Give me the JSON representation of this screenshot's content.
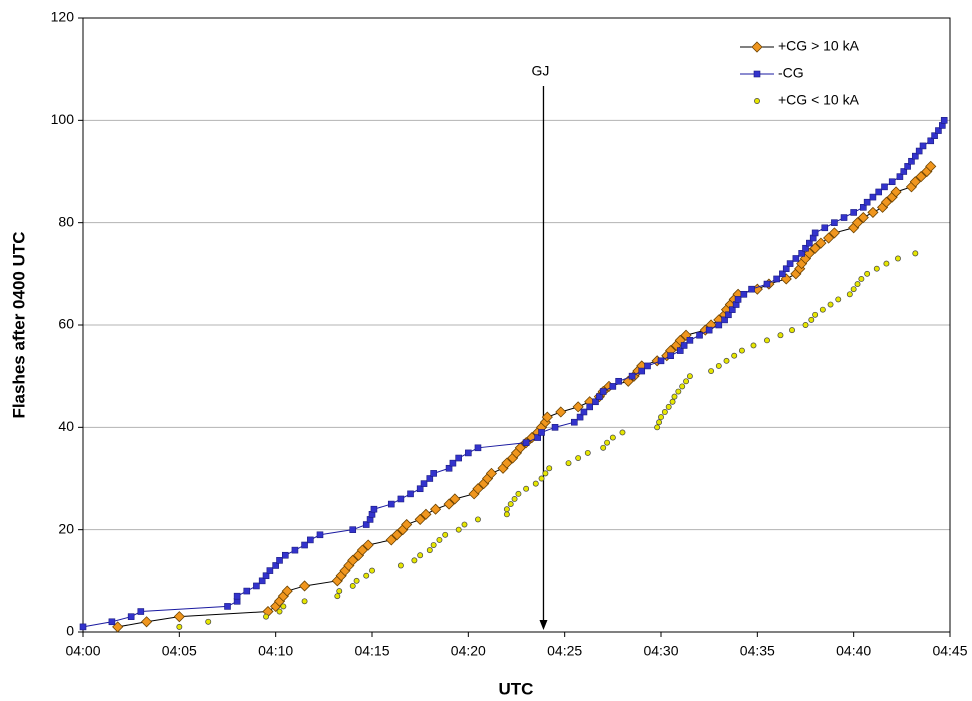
{
  "chart_data": {
    "type": "line",
    "x_label": "UTC",
    "y_label": "Flashes after 0400 UTC",
    "xlim": [
      0,
      45
    ],
    "ylim": [
      0,
      120
    ],
    "xticks": [
      {
        "value": 0,
        "label": "04:00"
      },
      {
        "value": 5,
        "label": "04:05"
      },
      {
        "value": 10,
        "label": "04:10"
      },
      {
        "value": 15,
        "label": "04:15"
      },
      {
        "value": 20,
        "label": "04:20"
      },
      {
        "value": 25,
        "label": "04:25"
      },
      {
        "value": 30,
        "label": "04:30"
      },
      {
        "value": 35,
        "label": "04:35"
      },
      {
        "value": 40,
        "label": "04:40"
      },
      {
        "value": 45,
        "label": "04:45"
      }
    ],
    "yticks": [
      0,
      20,
      40,
      60,
      80,
      100,
      120
    ],
    "grid": true,
    "legend": "top-right",
    "annotations": [
      {
        "text": "GJ",
        "x": 23.9
      }
    ],
    "series": [
      {
        "name": "+CG > 10 kA",
        "color": "#f0961e",
        "marker": "diamond",
        "line": true,
        "x": [
          1.8,
          3.3,
          5,
          9.6,
          10,
          10.2,
          10.4,
          10.6,
          11.5,
          13.2,
          13.4,
          13.6,
          13.8,
          14,
          14.3,
          14.5,
          14.8,
          16,
          16.3,
          16.6,
          16.8,
          17.5,
          17.8,
          18.3,
          19,
          19.3,
          20.3,
          20.5,
          20.8,
          21,
          21.2,
          21.8,
          22,
          22.3,
          22.5,
          22.7,
          23,
          23.3,
          23.6,
          23.8,
          24,
          24.1,
          24.8,
          25.7,
          26.3,
          26.8,
          27,
          27.3,
          28.3,
          28.6,
          28.8,
          29,
          29.8,
          30.3,
          30.5,
          30.8,
          31,
          31.3,
          32.3,
          32.6,
          33,
          33.3,
          33.4,
          33.6,
          33.8,
          34,
          35,
          35.6,
          36.5,
          37,
          37.2,
          37.3,
          37.5,
          37.7,
          38,
          38.3,
          38.7,
          39,
          40,
          40.2,
          40.5,
          41,
          41.5,
          41.7,
          42,
          42.2,
          43,
          43.2,
          43.5,
          43.8,
          44
        ],
        "values": [
          1,
          2,
          3,
          4,
          5,
          6,
          7,
          8,
          9,
          10,
          11,
          12,
          13,
          14,
          15,
          16,
          17,
          18,
          19,
          20,
          21,
          22,
          23,
          24,
          25,
          26,
          27,
          28,
          29,
          30,
          31,
          32,
          33,
          34,
          35,
          36,
          37,
          38,
          39,
          40,
          41,
          42,
          43,
          44,
          45,
          46,
          47,
          48,
          49,
          50,
          51,
          52,
          53,
          54,
          55,
          56,
          57,
          58,
          59,
          60,
          61,
          62,
          63,
          64,
          65,
          66,
          67,
          68,
          69,
          70,
          71,
          72,
          73,
          74,
          75,
          76,
          77,
          78,
          79,
          80,
          81,
          82,
          83,
          84,
          85,
          86,
          87,
          88,
          89,
          90,
          91
        ]
      },
      {
        "name": "-CG",
        "color": "#3333cc",
        "marker": "square",
        "line": true,
        "x": [
          0,
          1.5,
          2.5,
          3,
          7.5,
          8,
          8,
          8.5,
          9,
          9.3,
          9.5,
          9.7,
          10,
          10.2,
          10.5,
          11,
          11.5,
          11.8,
          12.3,
          14,
          14.7,
          14.9,
          15,
          15.1,
          16,
          16.5,
          17,
          17.5,
          17.7,
          18,
          18.2,
          19,
          19.2,
          19.5,
          20,
          20.5,
          23,
          23.6,
          23.8,
          24.5,
          25.5,
          25.8,
          26,
          26.3,
          26.6,
          26.8,
          27,
          27.5,
          27.8,
          28.5,
          29,
          29.3,
          30,
          30.5,
          31,
          31.2,
          31.5,
          32,
          32.5,
          33,
          33.3,
          33.5,
          33.7,
          33.9,
          34,
          34.3,
          34.7,
          35.5,
          36,
          36.3,
          36.5,
          36.7,
          37,
          37.3,
          37.5,
          37.7,
          37.9,
          38,
          38.5,
          39,
          39.5,
          40,
          40.5,
          40.7,
          41,
          41.3,
          41.6,
          42,
          42.4,
          42.6,
          42.8,
          43,
          43.2,
          43.4,
          43.6,
          44,
          44.2,
          44.4,
          44.6,
          44.7
        ],
        "values": [
          1,
          2,
          3,
          4,
          5,
          6,
          7,
          8,
          9,
          10,
          11,
          12,
          13,
          14,
          15,
          16,
          17,
          18,
          19,
          20,
          21,
          22,
          23,
          24,
          25,
          26,
          27,
          28,
          29,
          30,
          31,
          32,
          33,
          34,
          35,
          36,
          37,
          38,
          39,
          40,
          41,
          42,
          43,
          44,
          45,
          46,
          47,
          48,
          49,
          50,
          51,
          52,
          53,
          54,
          55,
          56,
          57,
          58,
          59,
          60,
          61,
          62,
          63,
          64,
          65,
          66,
          67,
          68,
          69,
          70,
          71,
          72,
          73,
          74,
          75,
          76,
          77,
          78,
          79,
          80,
          81,
          82,
          83,
          84,
          85,
          86,
          87,
          88,
          89,
          90,
          91,
          92,
          93,
          94,
          95,
          96,
          97,
          98,
          99,
          100
        ]
      },
      {
        "name": "+CG < 10 kA",
        "color": "#e6e600",
        "marker": "circle",
        "line": false,
        "x": [
          5,
          6.5,
          9.5,
          10.2,
          10.4,
          11.5,
          13.2,
          13.3,
          14,
          14.2,
          14.7,
          15,
          16.5,
          17.2,
          17.5,
          18,
          18.2,
          18.5,
          18.8,
          19.5,
          19.8,
          20.5,
          22,
          22,
          22.2,
          22.4,
          22.6,
          23,
          23.5,
          23.8,
          24,
          24.2,
          25.2,
          25.7,
          26.2,
          27,
          27.2,
          27.5,
          28,
          29.8,
          29.9,
          30,
          30.2,
          30.4,
          30.6,
          30.7,
          30.9,
          31.1,
          31.3,
          31.5,
          32.6,
          33,
          33.4,
          33.8,
          34.2,
          34.8,
          35.5,
          36.2,
          36.8,
          37.5,
          37.8,
          38,
          38.4,
          38.8,
          39.2,
          39.8,
          40,
          40.2,
          40.4,
          40.7,
          41.2,
          41.7,
          42.3,
          43.2
        ],
        "values": [
          1,
          2,
          3,
          4,
          5,
          6,
          7,
          8,
          9,
          10,
          11,
          12,
          13,
          14,
          15,
          16,
          17,
          18,
          19,
          20,
          21,
          22,
          23,
          24,
          25,
          26,
          27,
          28,
          29,
          30,
          31,
          32,
          33,
          34,
          35,
          36,
          37,
          38,
          39,
          40,
          41,
          42,
          43,
          44,
          45,
          46,
          47,
          48,
          49,
          50,
          51,
          52,
          53,
          54,
          55,
          56,
          57,
          58,
          59,
          60,
          61,
          62,
          63,
          64,
          65,
          66,
          67,
          68,
          69,
          70,
          71,
          72,
          73,
          74
        ]
      }
    ]
  }
}
